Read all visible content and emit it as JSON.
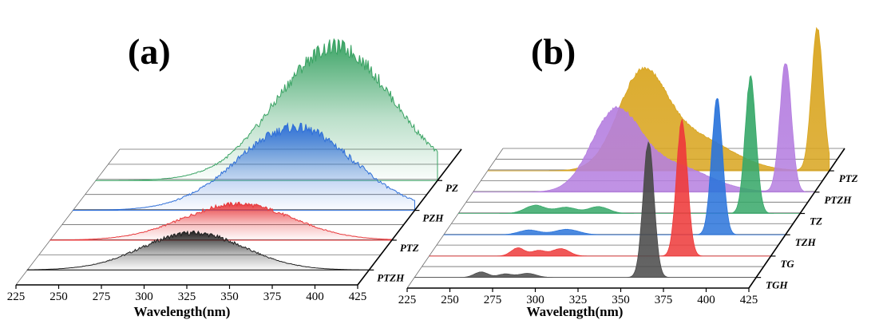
{
  "chart_data": [
    {
      "panel": "(a)",
      "type": "area",
      "xlabel": "Wavelength(nm)",
      "ylabel": "",
      "xlim": [
        225,
        425
      ],
      "xticks": [
        225,
        250,
        275,
        300,
        325,
        350,
        375,
        400,
        425
      ],
      "series": [
        {
          "name": "PTZH",
          "color": "#202020",
          "peak": 322,
          "width": 30,
          "amplitude": 0.43
        },
        {
          "name": "PTZ",
          "color": "#e8383b",
          "peak": 335,
          "width": 32,
          "amplitude": 0.42
        },
        {
          "name": "PZH",
          "color": "#2f6fd8",
          "peak": 355,
          "width": 34,
          "amplitude": 0.96
        },
        {
          "name": "PZ",
          "color": "#3aa364",
          "peak": 365,
          "width": 34,
          "amplitude": 1.55
        }
      ]
    },
    {
      "panel": "(b)",
      "type": "area",
      "xlabel": "Wavelength(nm)",
      "ylabel": "",
      "xlim": [
        225,
        425
      ],
      "xticks": [
        225,
        250,
        275,
        300,
        325,
        350,
        375,
        400,
        425
      ],
      "series": [
        {
          "name": "TGH",
          "color": "#4a4a4a",
          "peaks": [
            [
              264,
              0.04,
              4
            ],
            [
              278,
              0.025,
              4
            ],
            [
              291,
              0.03,
              5
            ],
            [
              362,
              1.0,
              3.2
            ]
          ]
        },
        {
          "name": "TG",
          "color": "#ee3b3b",
          "peaks": [
            [
              277,
              0.06,
              4
            ],
            [
              289,
              0.04,
              4
            ],
            [
              302,
              0.055,
              5
            ],
            [
              373,
              1.0,
              3.2
            ]
          ]
        },
        {
          "name": "TZH",
          "color": "#2c75db",
          "peaks": [
            [
              275,
              0.035,
              6
            ],
            [
              297,
              0.04,
              7
            ],
            [
              385,
              1.0,
              3.2
            ]
          ]
        },
        {
          "name": "TZ",
          "color": "#37a869",
          "peaks": [
            [
              270,
              0.06,
              6
            ],
            [
              288,
              0.045,
              6
            ],
            [
              307,
              0.05,
              6
            ],
            [
              396,
              1.0,
              3.2
            ]
          ]
        },
        {
          "name": "PTZH",
          "color": "#b57fe0",
          "peaks": [
            [
              308,
              0.55,
              14
            ],
            [
              340,
              0.2,
              22
            ],
            [
              408,
              0.95,
              3.4
            ]
          ]
        },
        {
          "name": "PTZ",
          "color": "#d9a51f",
          "peaks": [
            [
              315,
              0.65,
              14
            ],
            [
              345,
              0.25,
              22
            ],
            [
              418,
              1.05,
              3.4
            ]
          ]
        }
      ]
    }
  ]
}
